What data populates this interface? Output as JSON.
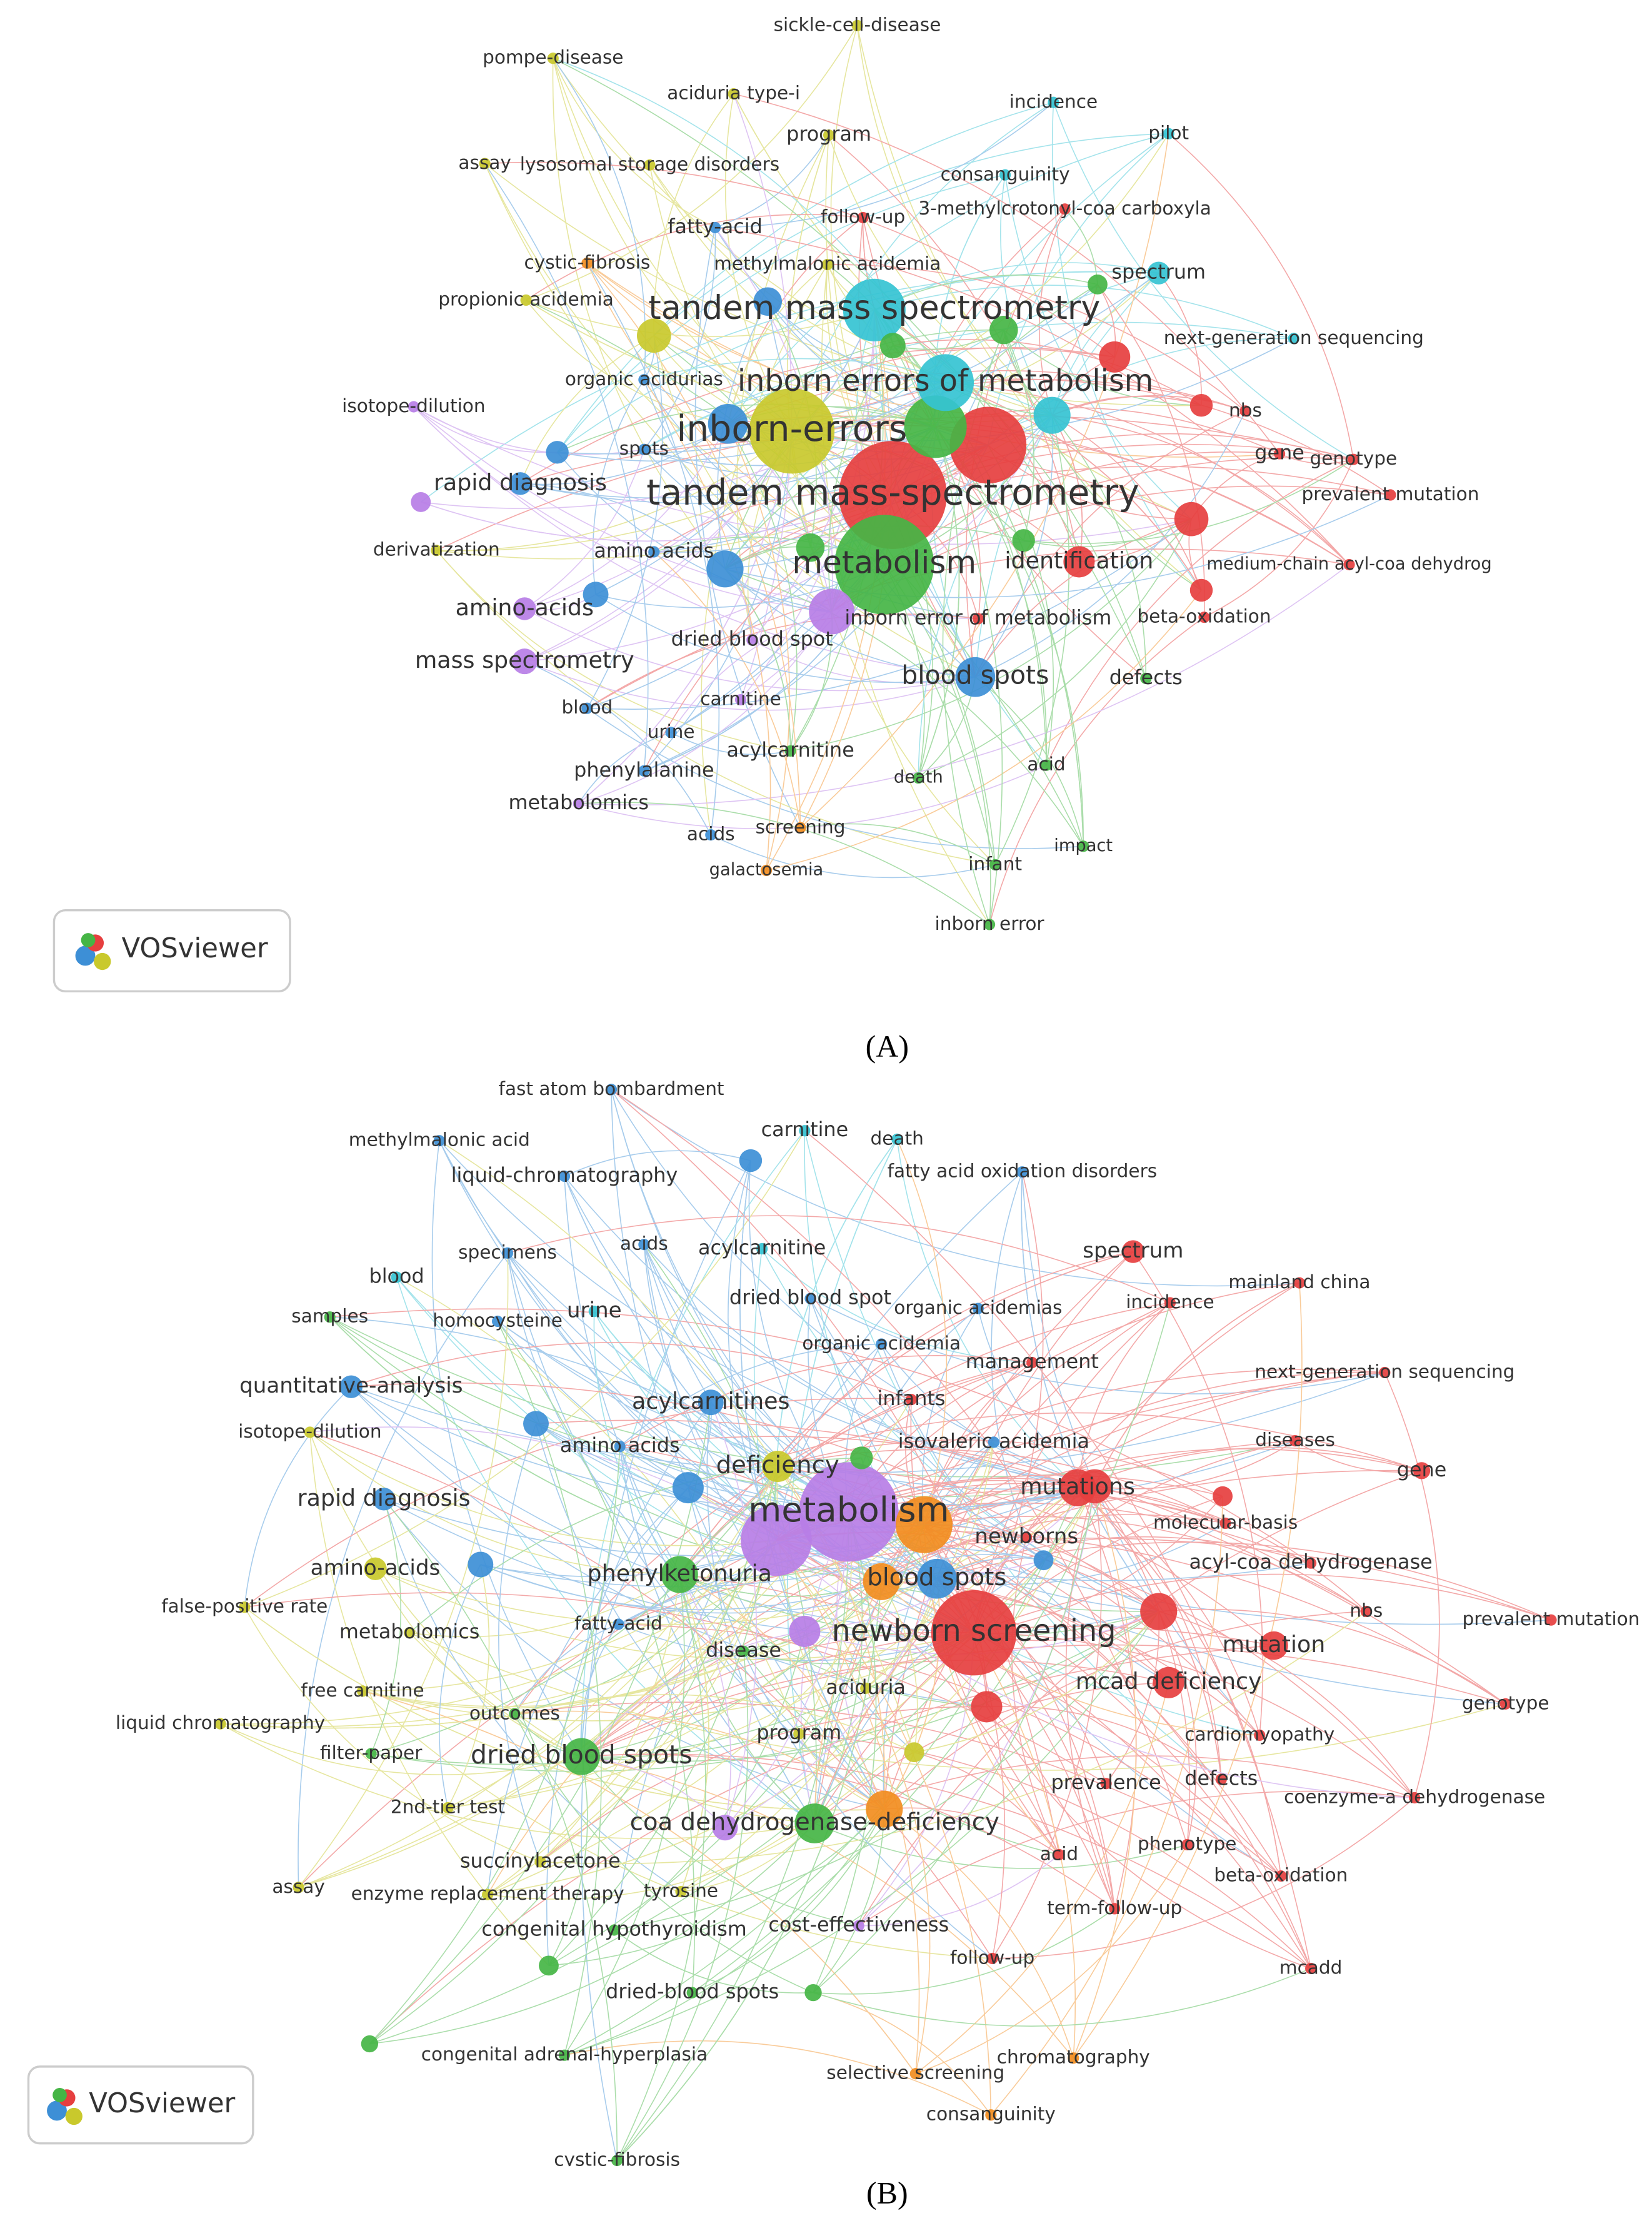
{
  "panels": [
    {
      "label": "(A)",
      "logo": "VOSviewer",
      "nodes": [
        "sickle-cell-disease",
        "pompe-disease",
        "aciduria type-i",
        "incidence",
        "pilot",
        "program",
        "assay",
        "lysosomal storage disorders",
        "consanguinity",
        "follow-up",
        "3-methylcrotonyl-coa carboxyla",
        "fatty-acid",
        "cystic-fibrosis",
        "methylmalonic acidemia",
        "spectrum",
        "propionic acidemia",
        "tandem mass spectrometry",
        "next-generation sequencing",
        "organic acidurias",
        "inborn errors of metabolism",
        "isotope-dilution",
        "nbs",
        "inborn-errors",
        "spots",
        "gene",
        "genotype",
        "rapid diagnosis",
        "tandem mass-spectrometry",
        "prevalent mutation",
        "derivatization",
        "amino acids",
        "metabolism",
        "identification",
        "medium-chain acyl-coa dehydrog",
        "amino-acids",
        "inborn error of metabolism",
        "beta-oxidation",
        "dried blood spot",
        "mass spectrometry",
        "blood spots",
        "defects",
        "carnitine",
        "blood",
        "urine",
        "acylcarnitine",
        "acid",
        "phenylalanine",
        "death",
        "metabolomics",
        "acids",
        "screening",
        "impact",
        "galactosemia",
        "infant",
        "inborn error"
      ]
    },
    {
      "label": "(B)",
      "logo": "VOSviewer",
      "nodes": [
        "fast atom bombardment",
        "methylmalonic acid",
        "carnitine",
        "death",
        "liquid-chromatography",
        "fatty acid oxidation disorders",
        "specimens",
        "acids",
        "acylcarnitine",
        "spectrum",
        "blood",
        "mainland china",
        "dried blood spot",
        "organic acidemias",
        "incidence",
        "samples",
        "homocysteine",
        "urine",
        "organic acidemia",
        "management",
        "next-generation sequencing",
        "quantitative-analysis",
        "isotope-dilution",
        "acylcarnitines",
        "infants",
        "isovaleric acidemia",
        "diseases",
        "amino acids",
        "deficiency",
        "gene",
        "rapid diagnosis",
        "mutations",
        "metabolism",
        "molecular-basis",
        "newborns",
        "amino-acids",
        "phenylketonuria",
        "blood spots",
        "acyl-coa dehydrogenase",
        "false-positive rate",
        "nbs",
        "prevalent mutation",
        "metabolomics",
        "fatty-acid",
        "newborn screening",
        "disease",
        "mutation",
        "mcad deficiency",
        "free carnitine",
        "aciduria",
        "genotype",
        "outcomes",
        "liquid chromatography",
        "filter-paper",
        "dried blood spots",
        "program",
        "cardiomyopathy",
        "prevalence",
        "defects",
        "coenzyme-a dehydrogenase",
        "2nd-tier test",
        "coa dehydrogenase-deficiency",
        "phenotype",
        "succinylacetone",
        "acid",
        "beta-oxidation",
        "assay",
        "enzyme replacement therapy",
        "tyrosine",
        "term-follow-up",
        "congenital hypothyroidism",
        "cost-effectiveness",
        "mcadd",
        "follow-up",
        "dried-blood spots",
        "congenital adrenal-hyperplasia",
        "chromatography",
        "selective screening",
        "consanguinity",
        "cystic-fibrosis"
      ]
    }
  ]
}
